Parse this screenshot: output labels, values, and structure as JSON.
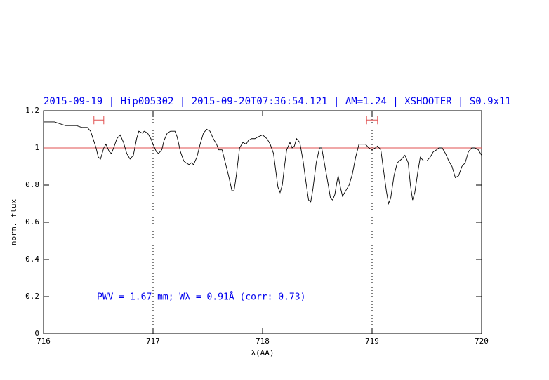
{
  "chart_data": {
    "type": "line",
    "title": "2015-09-19 | Hip005302 | 2015-09-20T07:36:54.121 | AM=1.24 | XSHOOTER | S0.9x11",
    "annotation": "PWV = 1.67 mm; Wλ = 0.91Å (corr: 0.73)",
    "x_label": "λ(AA)",
    "y_label": "norm. flux",
    "xlim": [
      716,
      720
    ],
    "xticks": [
      716,
      717,
      718,
      719,
      720
    ],
    "ylim": [
      0,
      1.2
    ],
    "yticks": [
      0,
      0.2,
      0.4,
      0.6,
      0.8,
      1,
      1.2
    ],
    "color": "#000000",
    "hline": {
      "value": 1,
      "color": "#e05050"
    },
    "vlines": [
      717,
      719
    ],
    "markers": [
      {
        "x": [
          716.46,
          716.55
        ],
        "y": 1.15,
        "color": "#e05050"
      },
      {
        "x": [
          718.95,
          719.05
        ],
        "y": 1.15,
        "color": "#e05050"
      }
    ],
    "x": [
      716.0,
      716.05,
      716.1,
      716.2,
      716.3,
      716.35,
      716.4,
      716.43,
      716.48,
      716.5,
      716.52,
      716.55,
      716.57,
      716.6,
      716.62,
      716.64,
      716.67,
      716.7,
      716.73,
      716.76,
      716.79,
      716.82,
      716.85,
      716.87,
      716.9,
      716.92,
      716.95,
      716.98,
      717.0,
      717.03,
      717.05,
      717.08,
      717.1,
      717.13,
      717.16,
      717.2,
      717.22,
      717.25,
      717.28,
      717.3,
      717.33,
      717.35,
      717.37,
      717.4,
      717.43,
      717.46,
      717.49,
      717.52,
      717.55,
      717.58,
      717.6,
      717.63,
      717.66,
      717.69,
      717.72,
      717.74,
      717.76,
      717.79,
      717.82,
      717.85,
      717.87,
      717.9,
      717.93,
      717.96,
      718.0,
      718.04,
      718.07,
      718.1,
      718.12,
      718.14,
      718.16,
      718.18,
      718.2,
      718.22,
      718.25,
      718.27,
      718.29,
      718.31,
      718.34,
      718.37,
      718.4,
      718.42,
      718.44,
      718.46,
      718.49,
      718.52,
      718.54,
      718.57,
      718.6,
      718.62,
      718.64,
      718.66,
      718.68,
      718.69,
      718.71,
      718.73,
      718.76,
      718.79,
      718.82,
      718.85,
      718.88,
      718.91,
      718.94,
      718.97,
      719.0,
      719.03,
      719.05,
      719.08,
      719.1,
      719.13,
      719.15,
      719.17,
      719.2,
      719.23,
      719.27,
      719.3,
      719.33,
      719.35,
      719.37,
      719.39,
      719.42,
      719.44,
      719.47,
      719.5,
      719.53,
      719.56,
      719.59,
      719.61,
      719.64,
      719.67,
      719.7,
      719.73,
      719.76,
      719.79,
      719.82,
      719.85,
      719.88,
      719.91,
      719.94,
      719.97,
      720.0
    ],
    "values": [
      1.14,
      1.14,
      1.14,
      1.12,
      1.12,
      1.11,
      1.11,
      1.09,
      1.0,
      0.95,
      0.94,
      1.0,
      1.02,
      0.98,
      0.97,
      1.0,
      1.05,
      1.07,
      1.03,
      0.97,
      0.94,
      0.96,
      1.05,
      1.09,
      1.08,
      1.09,
      1.08,
      1.05,
      1.02,
      0.98,
      0.97,
      0.99,
      1.04,
      1.08,
      1.09,
      1.09,
      1.06,
      0.98,
      0.93,
      0.92,
      0.91,
      0.92,
      0.91,
      0.95,
      1.02,
      1.08,
      1.1,
      1.09,
      1.05,
      1.02,
      0.99,
      0.99,
      0.92,
      0.85,
      0.77,
      0.77,
      0.85,
      1.0,
      1.03,
      1.02,
      1.04,
      1.05,
      1.05,
      1.06,
      1.07,
      1.05,
      1.02,
      0.97,
      0.88,
      0.79,
      0.76,
      0.8,
      0.9,
      0.99,
      1.03,
      1.0,
      1.01,
      1.05,
      1.03,
      0.93,
      0.8,
      0.72,
      0.71,
      0.78,
      0.92,
      1.0,
      1.0,
      0.9,
      0.8,
      0.73,
      0.72,
      0.75,
      0.82,
      0.85,
      0.79,
      0.74,
      0.77,
      0.8,
      0.86,
      0.95,
      1.02,
      1.02,
      1.02,
      1.0,
      0.99,
      1.0,
      1.01,
      0.99,
      0.9,
      0.77,
      0.7,
      0.73,
      0.85,
      0.92,
      0.94,
      0.96,
      0.92,
      0.8,
      0.72,
      0.76,
      0.88,
      0.95,
      0.93,
      0.93,
      0.95,
      0.98,
      0.99,
      1.0,
      1.0,
      0.97,
      0.93,
      0.9,
      0.84,
      0.85,
      0.9,
      0.92,
      0.98,
      1.0,
      1.0,
      0.99,
      0.96
    ]
  }
}
